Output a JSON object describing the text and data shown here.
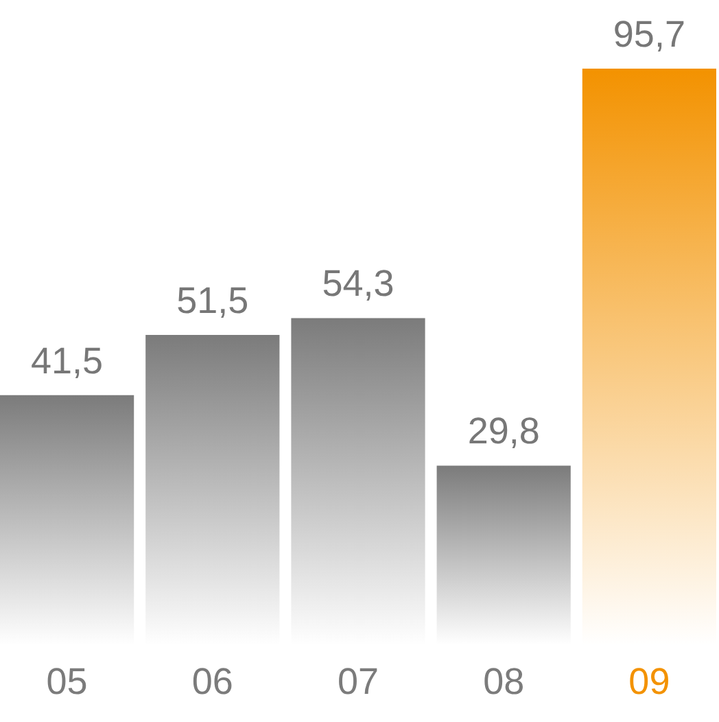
{
  "chart_data": {
    "type": "bar",
    "categories": [
      "05",
      "06",
      "07",
      "08",
      "09"
    ],
    "values": [
      41.5,
      51.5,
      54.3,
      29.8,
      95.7
    ],
    "value_labels": [
      "41,5",
      "51,5",
      "54,3",
      "29,8",
      "95,7"
    ],
    "colors": [
      "#7b7b7b",
      "#7b7b7b",
      "#7b7b7b",
      "#7b7b7b",
      "#f39200"
    ],
    "tick_labels": "x"
  }
}
